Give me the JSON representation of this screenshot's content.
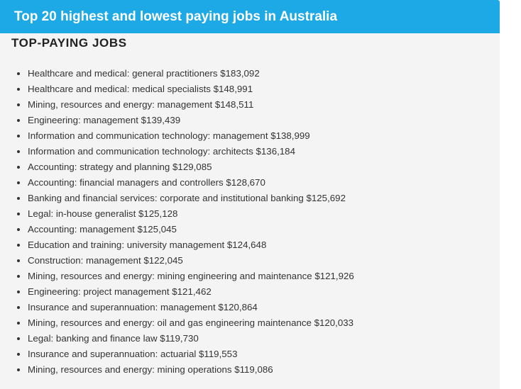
{
  "header": {
    "title": "Top 20 highest and lowest paying jobs in Australia"
  },
  "section": {
    "heading": "TOP-PAYING JOBS",
    "items": [
      "Healthcare and medical: general practitioners $183,092",
      "Healthcare and medical: medical specialists $148,991",
      "Mining, resources and energy: management $148,511",
      "Engineering: management $139,439",
      "Information and communication technology: management $138,999",
      "Information and communication technology: architects $136,184",
      "Accounting: strategy and planning $129,085",
      "Accounting: financial managers and controllers $128,670",
      "Banking and financial services: corporate and institutional banking $125,692",
      "Legal: in-house generalist $125,128",
      "Accounting: management $125,045",
      "Education and training: university management $124,648",
      "Construction: management $122,045",
      "Mining, resources and energy: mining engineering and maintenance $121,926",
      "Engineering: project management $121,462",
      "Insurance and superannuation: management $120,864",
      "Mining, resources and energy: oil and gas engineering maintenance $120,033",
      "Legal: banking and finance law $119,730",
      "Insurance and superannuation: actuarial $119,553",
      "Mining, resources and energy: mining operations $119,086"
    ]
  }
}
